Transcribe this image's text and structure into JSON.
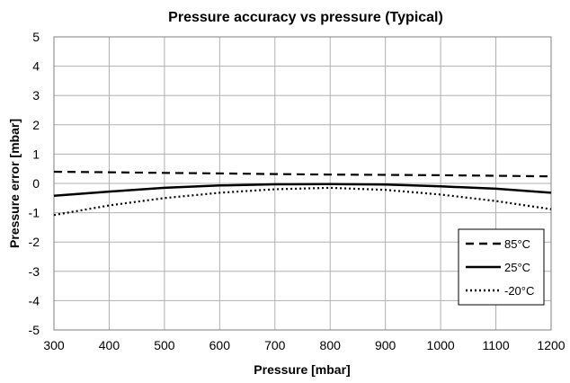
{
  "chart_data": {
    "type": "line",
    "title": "Pressure accuracy vs pressure (Typical)",
    "xlabel": "Pressure [mbar]",
    "ylabel": "Pressure error [mbar]",
    "xlim": [
      300,
      1200
    ],
    "ylim": [
      -5,
      5
    ],
    "xticks": [
      300,
      400,
      500,
      600,
      700,
      800,
      900,
      1000,
      1100,
      1200
    ],
    "yticks": [
      5,
      4,
      3,
      2,
      1,
      0,
      -1,
      -2,
      -3,
      -4,
      -5
    ],
    "grid": true,
    "legend_position": "bottom-right",
    "series": [
      {
        "name": "85°C",
        "style": "dashed",
        "x": [
          300,
          400,
          500,
          600,
          700,
          800,
          900,
          1000,
          1100,
          1200
        ],
        "values": [
          0.4,
          0.38,
          0.36,
          0.34,
          0.32,
          0.3,
          0.29,
          0.28,
          0.26,
          0.24
        ]
      },
      {
        "name": "25°C",
        "style": "solid",
        "x": [
          300,
          400,
          500,
          600,
          700,
          800,
          900,
          1000,
          1100,
          1200
        ],
        "values": [
          -0.42,
          -0.28,
          -0.15,
          -0.07,
          -0.03,
          -0.02,
          -0.04,
          -0.1,
          -0.18,
          -0.32
        ]
      },
      {
        "name": "-20°C",
        "style": "dotted",
        "x": [
          300,
          400,
          500,
          600,
          700,
          800,
          900,
          1000,
          1100,
          1200
        ],
        "values": [
          -1.08,
          -0.75,
          -0.5,
          -0.32,
          -0.2,
          -0.15,
          -0.22,
          -0.38,
          -0.6,
          -0.88
        ]
      }
    ],
    "colors": {
      "line": "#000000",
      "grid": "#b0b0b0",
      "background": "#ffffff"
    }
  }
}
